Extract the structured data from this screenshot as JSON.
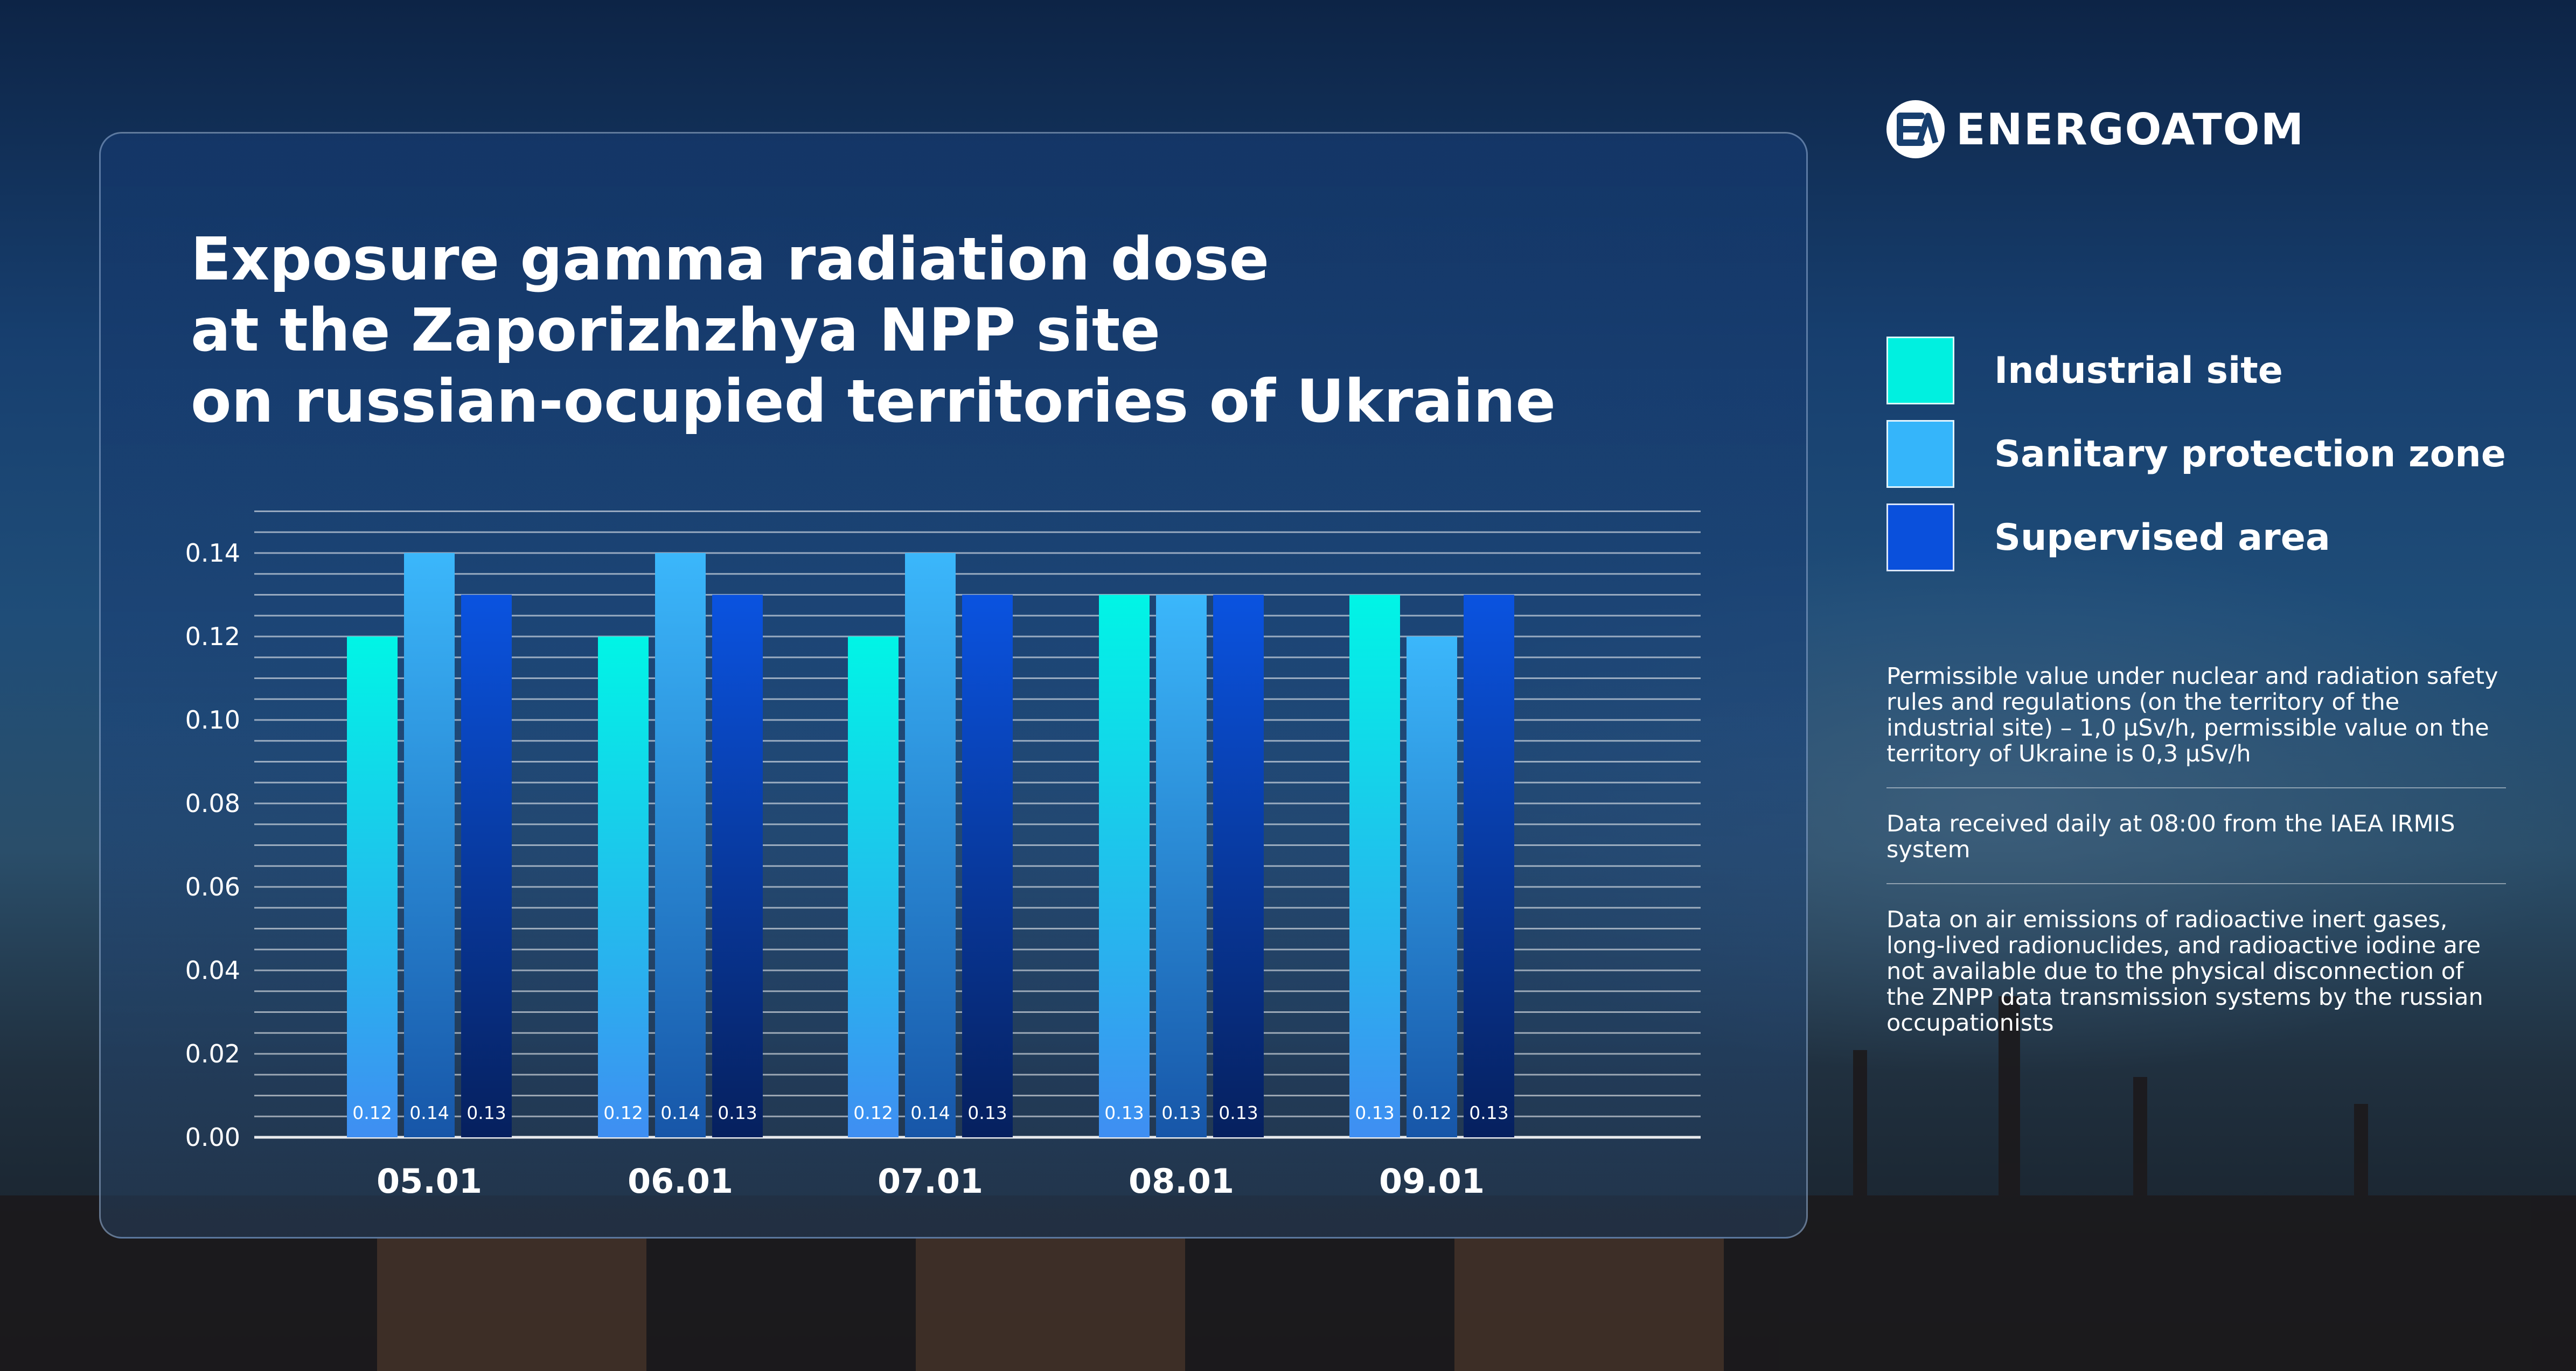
{
  "brand": {
    "name": "ENERGOATOM"
  },
  "title_lines": [
    "Exposure gamma radiation dose",
    "at the Zaporizhzhya NPP site",
    "on russian-ocupied territories of Ukraine"
  ],
  "legend": [
    {
      "label": "Industrial site",
      "color": "#00f0e0"
    },
    {
      "label": "Sanitary protection zone",
      "color": "#35b5fa"
    },
    {
      "label": "Supervised area",
      "color": "#0a50dc"
    }
  ],
  "notes": [
    "Permissible value under nuclear and radiation safety rules and regulations (on the territory of the industrial site) – 1,0 μSv/h, permissible value on the territory of Ukraine is 0,3 μSv/h",
    "Data received daily at 08:00 from the IAEA IRMIS system",
    "Data on air emissions of radioactive inert gases, long-lived radionuclides, and radioactive iodine are not available due to the physical disconnection of the ZNPP data transmission systems by the russian occupationists"
  ],
  "chart_data": {
    "type": "bar",
    "categories": [
      "05.01",
      "06.01",
      "07.01",
      "08.01",
      "09.01"
    ],
    "series": [
      {
        "name": "Industrial site",
        "values": [
          0.12,
          0.12,
          0.12,
          0.13,
          0.13
        ],
        "labels": [
          "0.12",
          "0.12",
          "0.12",
          "0.13",
          "0.13"
        ]
      },
      {
        "name": "Sanitary protection zone",
        "values": [
          0.14,
          0.14,
          0.14,
          0.13,
          0.12
        ],
        "labels": [
          "0.14",
          "0.14",
          "0.14",
          "0.13",
          "0.12"
        ]
      },
      {
        "name": "Supervised area",
        "values": [
          0.13,
          0.13,
          0.13,
          0.13,
          0.13
        ],
        "labels": [
          "0.13",
          "0.13",
          "0.13",
          "0.13",
          "0.13"
        ]
      }
    ],
    "ylim": [
      0,
      0.15
    ],
    "yticks": [
      "0.00",
      "0.02",
      "0.04",
      "0.06",
      "0.08",
      "0.10",
      "0.12",
      "0.14"
    ],
    "grid": true,
    "legend_position": "right"
  }
}
